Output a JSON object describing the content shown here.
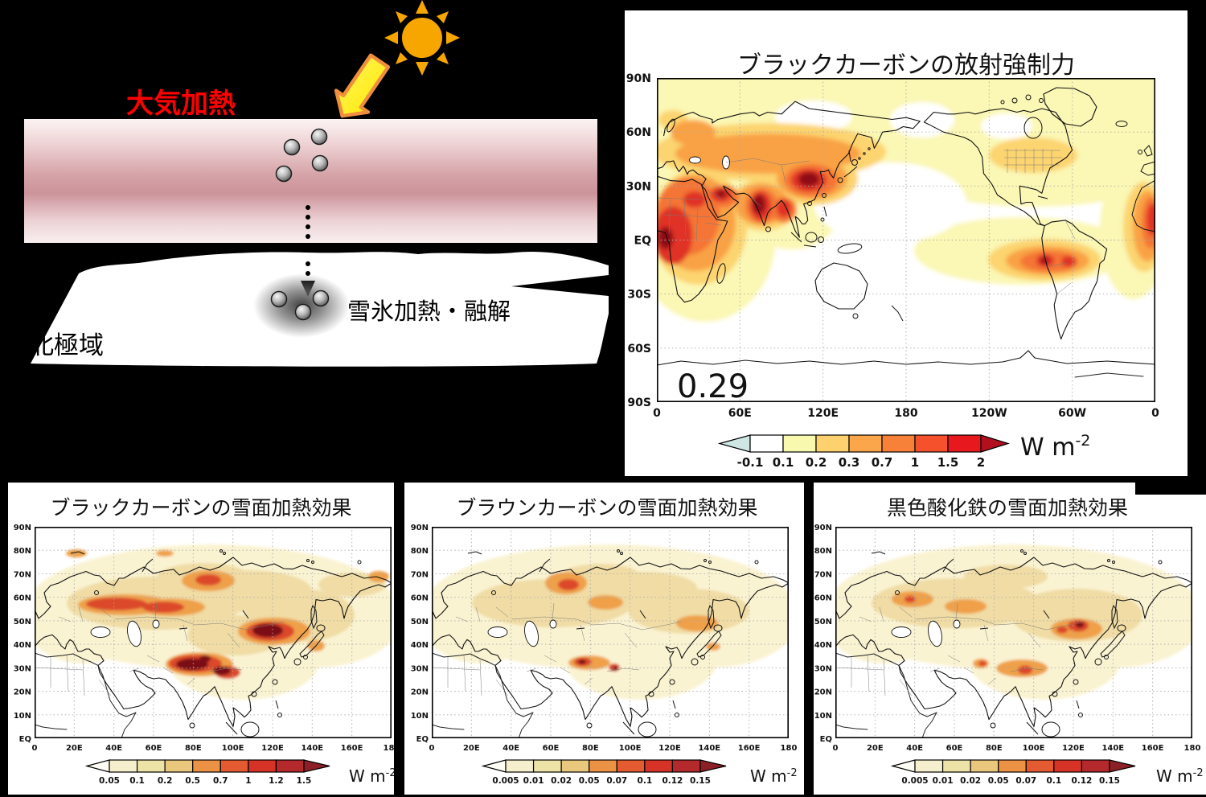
{
  "background": "#000000",
  "diagram": {
    "atmosphere_label": "大気加熱",
    "atmosphere_label_color": "#ff0000",
    "region_label": "北極域",
    "surface_label": "雪氷加熱・融解",
    "sun_color": "#F7A600",
    "arrow_fill": "#FFF000",
    "arrow_stroke": "#EF8F3E",
    "band_top_color": "#fcf3f3",
    "band_mid_color": "#cc939a"
  },
  "force_panel": {
    "title": "ブラックカーボンの放射強制力",
    "mean_value": "0.29",
    "unit": "W m",
    "unit_exp": "-2",
    "lat_ticks": [
      "90N",
      "60N",
      "30N",
      "EQ",
      "30S",
      "60S",
      "90S"
    ],
    "lon_ticks": [
      "0",
      "60E",
      "120E",
      "180",
      "120W",
      "60W",
      "0"
    ],
    "colorbar": {
      "tick_labels": [
        "-0.1",
        "0.1",
        "0.2",
        "0.3",
        "0.7",
        "1",
        "1.5",
        "2"
      ],
      "segment_colors": [
        "#ffffff",
        "#f8f9ae",
        "#fdd26e",
        "#fba64a",
        "#f8813a",
        "#f4512c",
        "#e8191e"
      ],
      "under_color": "#cfe7e4",
      "over_color": "#b2101f"
    }
  },
  "snow_maps": {
    "unit": "W m",
    "unit_exp": "-2",
    "lat_ticks": [
      "90N",
      "80N",
      "70N",
      "60N",
      "50N",
      "40N",
      "30N",
      "20N",
      "10N",
      "EQ"
    ],
    "lon_ticks": [
      "0",
      "20E",
      "40E",
      "60E",
      "80E",
      "100E",
      "120E",
      "140E",
      "160E",
      "180"
    ],
    "colorbar_colors": [
      "#f5efcd",
      "#eee3a7",
      "#e9c87e",
      "#ec9245",
      "#e55b31",
      "#d63226",
      "#b4292b"
    ],
    "colorbar_under": "#fdfdf5",
    "colorbar_over": "#8d2026",
    "panels": [
      {
        "id": "bc",
        "title": "ブラックカーボンの雪面加熱効果",
        "colorbar_ticks": [
          "0.05",
          "0.1",
          "0.2",
          "0.5",
          "0.7",
          "1",
          "1.2",
          "1.5"
        ]
      },
      {
        "id": "brc",
        "title": "ブラウンカーボンの雪面加熱効果",
        "colorbar_ticks": [
          "0.005",
          "0.01",
          "0.02",
          "0.05",
          "0.07",
          "0.1",
          "0.12",
          "0.15"
        ]
      },
      {
        "id": "feox",
        "title": "黒色酸化鉄の雪面加熱効果",
        "colorbar_ticks": [
          "0.005",
          "0.01",
          "0.02",
          "0.05",
          "0.07",
          "0.1",
          "0.12",
          "0.15"
        ]
      }
    ]
  },
  "palette": {
    "map_white": "#ffffff",
    "pale_yellow": "#fbf7b4",
    "light_orange": "#fcd470",
    "orange": "#f9a245",
    "deep_orange": "#f47434",
    "red": "#e03028",
    "dark_red": "#8f1016",
    "snow_cream": "#faf3d2",
    "snow_tan": "#f0dca4",
    "snow_orange": "#efa049",
    "snow_red": "#dc4a2c",
    "snow_dark": "#7c1114"
  }
}
